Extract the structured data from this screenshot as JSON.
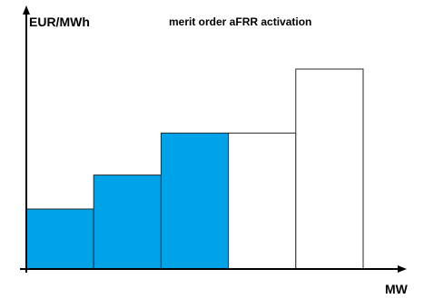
{
  "chart_data": {
    "type": "bar",
    "title": "merit order aFRR activation",
    "xlabel": "MW",
    "ylabel": "EUR/MWh",
    "y_ticks_shown": false,
    "x_ticks_shown": false,
    "grid": false,
    "legend": "none",
    "colors": {
      "activated": "#00A2E8",
      "not_activated": "#FFFFFF",
      "outline": "#2B2B2B",
      "axis": "#000000"
    },
    "ylim": [
      0,
      100
    ],
    "bars": [
      {
        "value": 30,
        "activated": true
      },
      {
        "value": 47,
        "activated": true
      },
      {
        "value": 68,
        "activated": true
      },
      {
        "value": 68,
        "activated": false
      },
      {
        "value": 100,
        "activated": false
      }
    ]
  }
}
